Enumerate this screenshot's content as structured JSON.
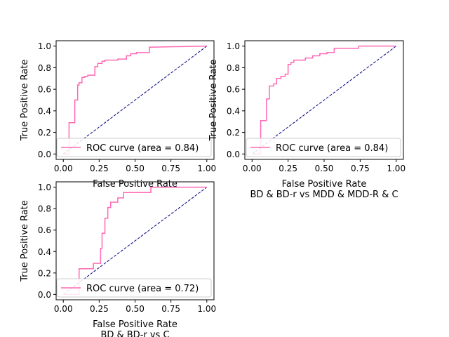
{
  "colors": {
    "roc": "#ff69b4",
    "chance": "#000080",
    "axis": "#000000",
    "legend_border": "#cccccc",
    "background": "#ffffff"
  },
  "chart_data": [
    {
      "type": "line",
      "xlabel": "False Positive Rate",
      "ylabel": "True Positive Rate",
      "title": "",
      "xlim": [
        -0.05,
        1.05
      ],
      "ylim": [
        -0.05,
        1.05
      ],
      "xticks": [
        "0.00",
        "0.25",
        "0.50",
        "0.75",
        "1.00"
      ],
      "yticks": [
        "0.0",
        "0.2",
        "0.4",
        "0.6",
        "0.8",
        "1.0"
      ],
      "legend_label": "ROC curve (area = 0.84)",
      "legend_loc": "lower right",
      "series": [
        {
          "name": "ROC curve (area = 0.84)",
          "x": [
            0.0,
            0.04,
            0.04,
            0.08,
            0.08,
            0.1,
            0.1,
            0.11,
            0.11,
            0.13,
            0.13,
            0.15,
            0.15,
            0.17,
            0.17,
            0.22,
            0.22,
            0.24,
            0.24,
            0.27,
            0.27,
            0.29,
            0.29,
            0.38,
            0.38,
            0.44,
            0.44,
            0.47,
            0.47,
            0.51,
            0.51,
            0.6,
            0.6,
            1.0
          ],
          "y": [
            0.0,
            0.0,
            0.29,
            0.29,
            0.5,
            0.5,
            0.64,
            0.64,
            0.66,
            0.66,
            0.71,
            0.71,
            0.72,
            0.72,
            0.73,
            0.73,
            0.81,
            0.81,
            0.84,
            0.84,
            0.86,
            0.86,
            0.87,
            0.87,
            0.88,
            0.88,
            0.91,
            0.91,
            0.93,
            0.93,
            0.94,
            0.94,
            0.99,
            1.0
          ]
        },
        {
          "x": [
            0,
            1
          ],
          "y": [
            0,
            1
          ]
        }
      ]
    },
    {
      "type": "line",
      "xlabel": "False Positive Rate",
      "ylabel": "True Positive Rate",
      "title": "BD & BD-r vs MDD & MDD-R & C",
      "xlim": [
        -0.05,
        1.05
      ],
      "ylim": [
        -0.05,
        1.05
      ],
      "xticks": [
        "0.00",
        "0.25",
        "0.50",
        "0.75",
        "1.00"
      ],
      "yticks": [
        "0.0",
        "0.2",
        "0.4",
        "0.6",
        "0.8",
        "1.0"
      ],
      "legend_label": "ROC curve (area = 0.84)",
      "legend_loc": "lower right",
      "series": [
        {
          "name": "ROC curve (area = 0.84)",
          "x": [
            0.0,
            0.06,
            0.06,
            0.1,
            0.1,
            0.12,
            0.12,
            0.15,
            0.15,
            0.17,
            0.17,
            0.2,
            0.2,
            0.23,
            0.23,
            0.25,
            0.25,
            0.27,
            0.27,
            0.29,
            0.29,
            0.37,
            0.37,
            0.42,
            0.42,
            0.47,
            0.47,
            0.52,
            0.52,
            0.57,
            0.57,
            0.74,
            0.74,
            1.0
          ],
          "y": [
            0.0,
            0.0,
            0.31,
            0.31,
            0.51,
            0.51,
            0.63,
            0.63,
            0.65,
            0.65,
            0.7,
            0.7,
            0.72,
            0.72,
            0.74,
            0.74,
            0.83,
            0.83,
            0.85,
            0.85,
            0.87,
            0.87,
            0.89,
            0.89,
            0.91,
            0.91,
            0.93,
            0.93,
            0.94,
            0.94,
            0.98,
            0.98,
            1.0,
            1.0
          ]
        },
        {
          "x": [
            0,
            1
          ],
          "y": [
            0,
            1
          ]
        }
      ]
    },
    {
      "type": "line",
      "xlabel": "False Positive Rate",
      "ylabel": "True Positive Rate",
      "title": "BD & BD-r vs C",
      "xlim": [
        -0.05,
        1.05
      ],
      "ylim": [
        -0.05,
        1.05
      ],
      "xticks": [
        "0.00",
        "0.25",
        "0.50",
        "0.75",
        "1.00"
      ],
      "yticks": [
        "0.0",
        "0.2",
        "0.4",
        "0.6",
        "0.8",
        "1.0"
      ],
      "legend_label": "ROC curve (area = 0.72)",
      "legend_loc": "lower right",
      "series": [
        {
          "name": "ROC curve (area = 0.72)",
          "x": [
            0.0,
            0.11,
            0.11,
            0.21,
            0.21,
            0.26,
            0.26,
            0.27,
            0.27,
            0.29,
            0.29,
            0.31,
            0.31,
            0.33,
            0.33,
            0.38,
            0.38,
            0.42,
            0.42,
            0.61,
            0.61,
            0.71,
            0.71,
            1.0
          ],
          "y": [
            0.0,
            0.0,
            0.24,
            0.24,
            0.29,
            0.29,
            0.43,
            0.43,
            0.57,
            0.57,
            0.71,
            0.71,
            0.81,
            0.81,
            0.86,
            0.86,
            0.9,
            0.9,
            0.95,
            0.95,
            1.0,
            1.0,
            1.0,
            1.0
          ]
        },
        {
          "x": [
            0,
            1
          ],
          "y": [
            0,
            1
          ]
        }
      ]
    }
  ]
}
